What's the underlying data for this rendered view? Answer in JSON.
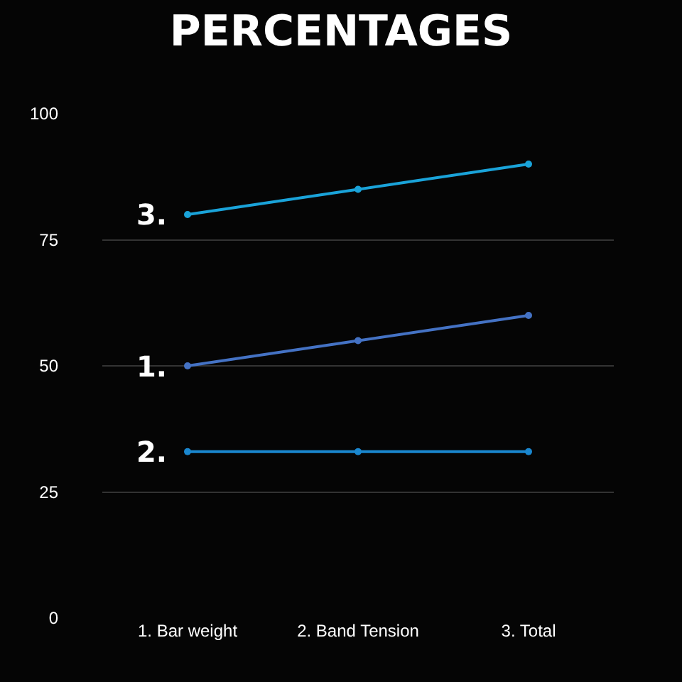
{
  "chart_data": {
    "type": "line",
    "title": "PERCENTAGES",
    "categories": [
      "1. Bar weight",
      "2. Band Tension",
      "3. Total"
    ],
    "series": [
      {
        "name": "1.",
        "color": "#4472c4",
        "values": [
          50,
          55,
          60
        ]
      },
      {
        "name": "2.",
        "color": "#1a87cf",
        "values": [
          33,
          33,
          33
        ]
      },
      {
        "name": "3.",
        "color": "#1aa3d9",
        "values": [
          80,
          85,
          90
        ]
      }
    ],
    "ylim": [
      0,
      100
    ],
    "yticks": [
      0,
      25,
      50,
      75,
      100
    ],
    "grid": "y",
    "marker": "circle",
    "line_style": "solid",
    "legend": false
  }
}
